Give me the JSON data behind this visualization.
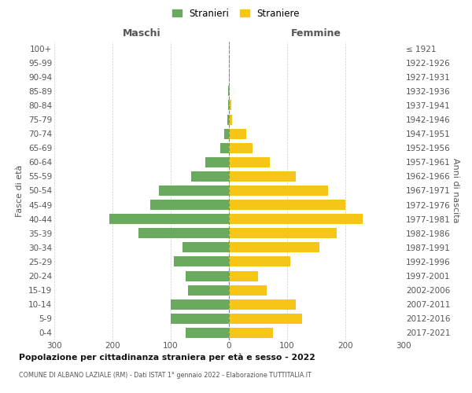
{
  "age_groups": [
    "0-4",
    "5-9",
    "10-14",
    "15-19",
    "20-24",
    "25-29",
    "30-34",
    "35-39",
    "40-44",
    "45-49",
    "50-54",
    "55-59",
    "60-64",
    "65-69",
    "70-74",
    "75-79",
    "80-84",
    "85-89",
    "90-94",
    "95-99",
    "100+"
  ],
  "birth_years": [
    "2017-2021",
    "2012-2016",
    "2007-2011",
    "2002-2006",
    "1997-2001",
    "1992-1996",
    "1987-1991",
    "1982-1986",
    "1977-1981",
    "1972-1976",
    "1967-1971",
    "1962-1966",
    "1957-1961",
    "1952-1956",
    "1947-1951",
    "1942-1946",
    "1937-1941",
    "1932-1936",
    "1927-1931",
    "1922-1926",
    "≤ 1921"
  ],
  "males": [
    75,
    100,
    100,
    70,
    75,
    95,
    80,
    155,
    205,
    135,
    120,
    65,
    40,
    15,
    8,
    3,
    2,
    1,
    0,
    0,
    0
  ],
  "females": [
    75,
    125,
    115,
    65,
    50,
    105,
    155,
    185,
    230,
    200,
    170,
    115,
    70,
    40,
    30,
    5,
    4,
    2,
    2,
    1,
    1
  ],
  "male_color": "#6aaa5e",
  "female_color": "#f5c518",
  "grid_color": "#cccccc",
  "title": "Popolazione per cittadinanza straniera per età e sesso - 2022",
  "subtitle": "COMUNE DI ALBANO LAZIALE (RM) - Dati ISTAT 1° gennaio 2022 - Elaborazione TUTTITALIA.IT",
  "ylabel_left": "Fasce di età",
  "ylabel_right": "Anni di nascita",
  "xlabel_left": "Maschi",
  "xlabel_right": "Femmine",
  "legend_males": "Stranieri",
  "legend_females": "Straniere",
  "xlim": 300,
  "xticks": [
    -300,
    -200,
    -100,
    0,
    100,
    200,
    300
  ]
}
